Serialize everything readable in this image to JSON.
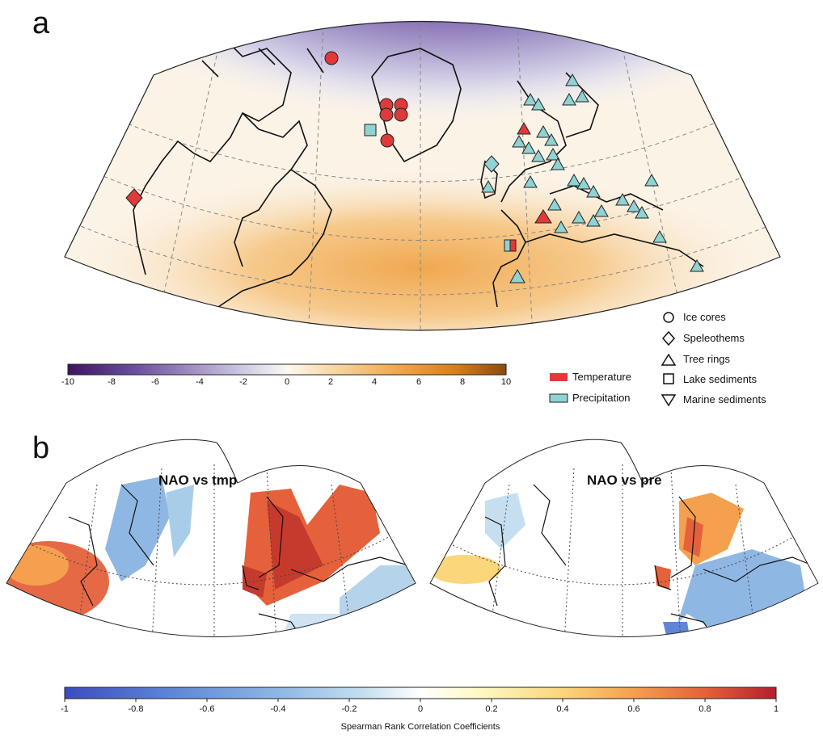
{
  "panel_a": {
    "letter": "a",
    "colorbar": {
      "ticks": [
        "-10",
        "-8",
        "-6",
        "-4",
        "-2",
        "0",
        "2",
        "4",
        "6",
        "8",
        "10"
      ],
      "min": -10,
      "max": 10,
      "colors": [
        "#3c1361",
        "#6a4d9e",
        "#a797c7",
        "#e3e3ee",
        "#fdf6ea",
        "#f8d9a8",
        "#f0a850",
        "#d9801a",
        "#8a4a10"
      ]
    },
    "legend_colors": {
      "items": [
        {
          "label": "Temperature",
          "color": "#e0393a"
        },
        {
          "label": "Precipitation",
          "color": "#8fd3d3"
        }
      ]
    },
    "legend_shapes": {
      "items": [
        {
          "label": "Ice cores",
          "shape": "circle"
        },
        {
          "label": "Speleothems",
          "shape": "diamond"
        },
        {
          "label": "Tree rings",
          "shape": "triangle-up"
        },
        {
          "label": "Lake sediments",
          "shape": "square"
        },
        {
          "label": "Marine sediments",
          "shape": "triangle-down"
        }
      ]
    }
  },
  "panel_b": {
    "letter": "b",
    "maps": [
      {
        "title": "NAO vs tmp"
      },
      {
        "title": "NAO vs pre"
      }
    ],
    "colorbar": {
      "ticks": [
        "-1",
        "-0.8",
        "-0.6",
        "-0.4",
        "-0.2",
        "0",
        "0.2",
        "0.4",
        "0.6",
        "0.8",
        "1"
      ],
      "min": -1,
      "max": 1,
      "label": "Spearman Rank Correlation Coefficients",
      "colors": [
        "#3b4cc0",
        "#5f86d6",
        "#8fb7e4",
        "#c5dff0",
        "#f2f7fa",
        "#fff9c8",
        "#fbd67a",
        "#f5a04f",
        "#e5613b",
        "#b51d2c"
      ]
    }
  }
}
